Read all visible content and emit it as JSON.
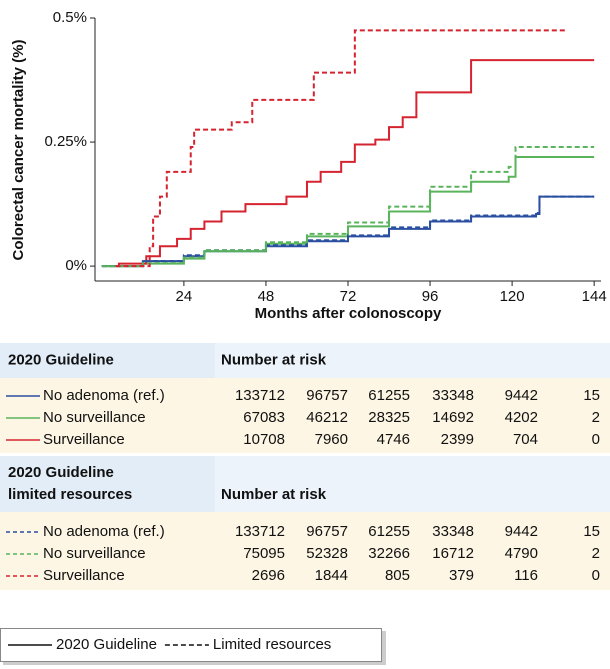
{
  "chart_data": {
    "type": "line",
    "step": true,
    "ylabel": "Colorectal cancer mortality (%)",
    "xlabel": "Months after colonoscopy",
    "xlim": [
      -2,
      146
    ],
    "ylim": [
      -0.03,
      0.5
    ],
    "xticks": [
      24,
      48,
      72,
      96,
      120,
      144
    ],
    "yticks": [
      {
        "value": 0,
        "label": "0%"
      },
      {
        "value": 0.25,
        "label": "0.25%"
      },
      {
        "value": 0.5,
        "label": "0.5%"
      }
    ],
    "series": [
      {
        "name": "No adenoma (ref.)",
        "color": "#2b4fa0",
        "dashed": false,
        "x": [
          0,
          12,
          24,
          30,
          48,
          60,
          72,
          84,
          96,
          108,
          127,
          128,
          144
        ],
        "values": [
          0,
          0.01,
          0.02,
          0.03,
          0.04,
          0.05,
          0.06,
          0.075,
          0.09,
          0.1,
          0.105,
          0.14,
          0.14
        ],
        "at_risk": [
          133712,
          96757,
          61255,
          33348,
          9442,
          15
        ]
      },
      {
        "name": "No surveillance",
        "color": "#5ab45c",
        "dashed": false,
        "x": [
          0,
          12,
          24,
          30,
          48,
          60,
          72,
          84,
          96,
          108,
          119,
          121,
          144
        ],
        "values": [
          0,
          0.005,
          0.015,
          0.03,
          0.045,
          0.06,
          0.08,
          0.11,
          0.15,
          0.17,
          0.18,
          0.22,
          0.22
        ],
        "at_risk": [
          67083,
          46212,
          28325,
          14692,
          4202,
          2
        ]
      },
      {
        "name": "Surveillance",
        "color": "#d5232f",
        "dashed": false,
        "x": [
          4,
          5,
          13,
          17,
          22,
          26,
          30,
          35,
          42,
          54,
          60,
          64,
          70,
          74,
          80,
          84,
          88,
          92,
          108,
          144
        ],
        "values": [
          0,
          0.005,
          0.02,
          0.04,
          0.055,
          0.075,
          0.09,
          0.11,
          0.125,
          0.14,
          0.17,
          0.19,
          0.21,
          0.245,
          0.255,
          0.28,
          0.3,
          0.35,
          0.415,
          0.415
        ],
        "at_risk": [
          10708,
          7960,
          4746,
          2399,
          704,
          0
        ]
      },
      {
        "name": "No adenoma (ref.)",
        "color": "#2b4fa0",
        "dashed": true,
        "x": [
          0,
          12,
          24,
          30,
          48,
          60,
          72,
          84,
          96,
          108,
          127,
          128,
          144
        ],
        "values": [
          0,
          0.01,
          0.022,
          0.032,
          0.042,
          0.052,
          0.062,
          0.078,
          0.092,
          0.102,
          0.107,
          0.14,
          0.14
        ],
        "at_risk": [
          133712,
          96757,
          61255,
          33348,
          9442,
          15
        ]
      },
      {
        "name": "No surveillance",
        "color": "#5ab45c",
        "dashed": true,
        "x": [
          0,
          12,
          24,
          30,
          48,
          60,
          72,
          84,
          96,
          108,
          119,
          121,
          144
        ],
        "values": [
          0,
          0.006,
          0.017,
          0.032,
          0.048,
          0.065,
          0.088,
          0.12,
          0.16,
          0.19,
          0.2,
          0.24,
          0.24
        ],
        "at_risk": [
          75095,
          52328,
          32266,
          16712,
          4790,
          2
        ]
      },
      {
        "name": "Surveillance",
        "color": "#d5232f",
        "dashed": true,
        "x": [
          4,
          12,
          14,
          15,
          17,
          19,
          26,
          27,
          38,
          44,
          62,
          74,
          136
        ],
        "values": [
          0,
          0,
          0.04,
          0.1,
          0.14,
          0.19,
          0.24,
          0.275,
          0.29,
          0.335,
          0.39,
          0.475,
          0.475
        ],
        "at_risk": [
          2696,
          1844,
          805,
          379,
          116,
          0
        ]
      }
    ]
  },
  "risk_tables": [
    {
      "title": [
        "2020 Guideline"
      ],
      "header": "Number at risk"
    },
    {
      "title": [
        "2020 Guideline",
        "limited resources"
      ],
      "header": "Number at risk"
    }
  ],
  "line_styles": [
    {
      "label": "2020 Guideline",
      "dashed": false
    },
    {
      "label": "Limited resources",
      "dashed": true
    }
  ]
}
